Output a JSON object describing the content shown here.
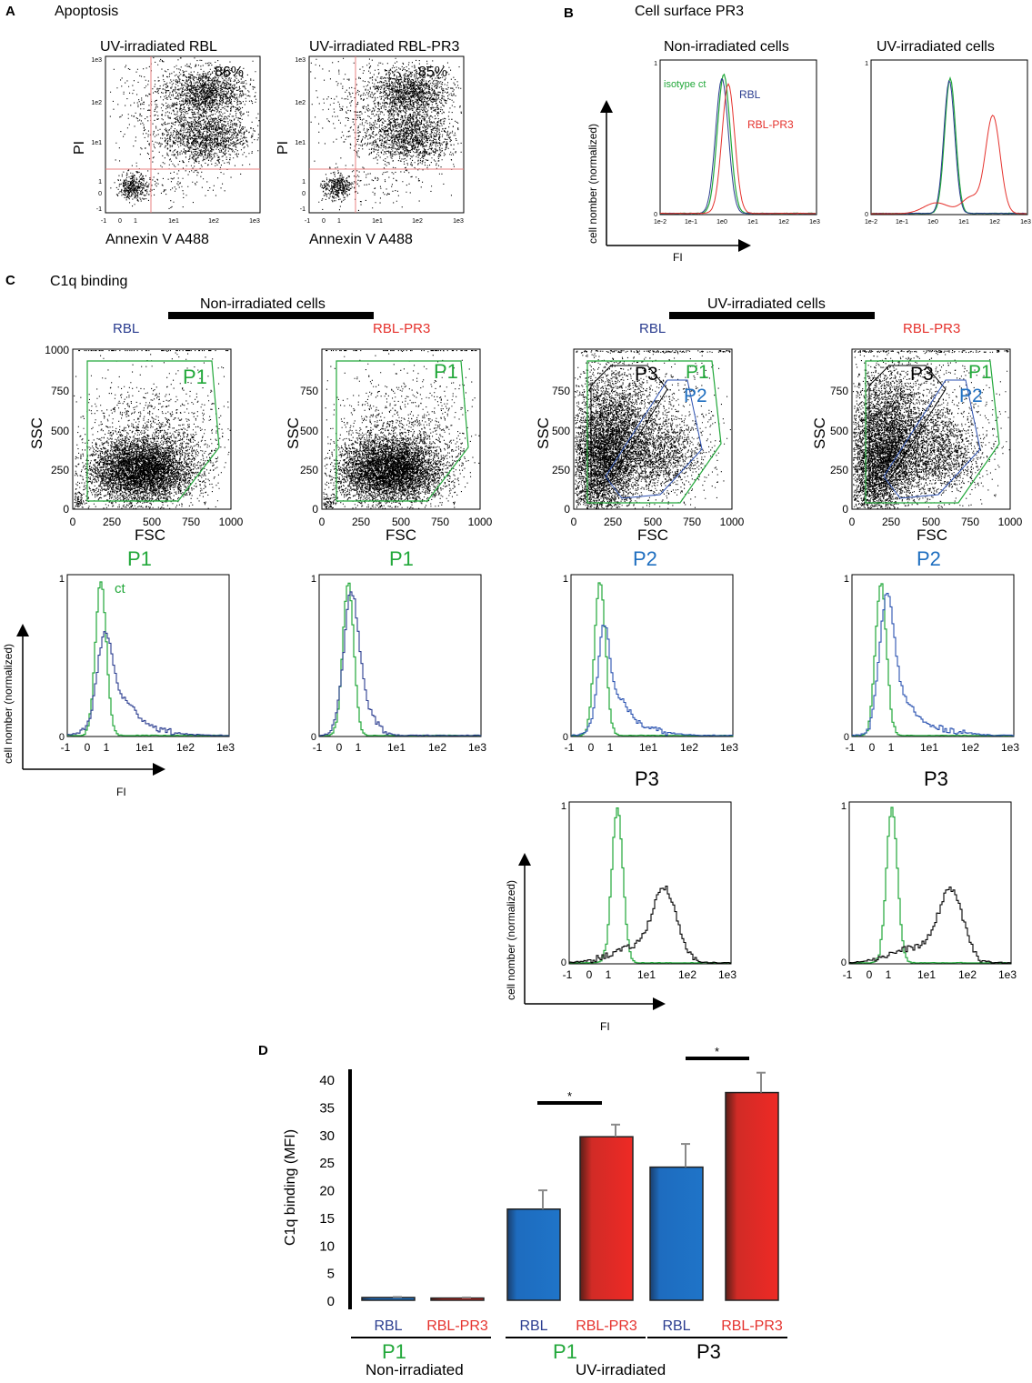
{
  "colors": {
    "green": "#22a83a",
    "red": "#e5322d",
    "navy": "#2a3c8f",
    "blue": "#1f6fc0",
    "black": "#000000",
    "gate_red": "#e88080"
  },
  "panel_a": {
    "letter": "A",
    "title": "Apoptosis",
    "plots": [
      {
        "title": "UV-irradiated  RBL",
        "percent": "86%",
        "ylabel": "PI",
        "xlabel": "Annexin V A488"
      },
      {
        "title": "UV-irradiated RBL-PR3",
        "percent": "85%",
        "ylabel": "PI",
        "xlabel": "Annexin V A488"
      }
    ],
    "x_ticks": [
      "-1",
      "0",
      "1",
      "1e1",
      "1e2",
      "1e3"
    ],
    "y_ticks": [
      "1e3",
      "1e2",
      "1e1",
      "1",
      "0",
      "-1"
    ]
  },
  "panel_b": {
    "letter": "B",
    "title": "Cell surface PR3",
    "plots": [
      {
        "title": "Non-irradiated cells"
      },
      {
        "title": "UV-irradiated cells"
      }
    ],
    "legend": {
      "isotype": "isotype ct",
      "rbl": "RBL",
      "rbl_pr3": "RBL-PR3"
    },
    "ylabel": "cell nomber (normalized)",
    "xlabel": "FI",
    "x_ticks": [
      "1e-2",
      "1e-1",
      "1e0",
      "1e1",
      "1e2",
      "1e3"
    ]
  },
  "panel_c": {
    "letter": "C",
    "title": "C1q binding",
    "group_non": "Non-irradiated cells",
    "group_uv": "UV-irradiated cells",
    "scatter": [
      {
        "name": "RBL",
        "gates": [
          "P1"
        ]
      },
      {
        "name": "RBL-PR3",
        "gates": [
          "P1"
        ]
      },
      {
        "name": "RBL",
        "gates": [
          "P3",
          "P1",
          "P2"
        ]
      },
      {
        "name": "RBL-PR3",
        "gates": [
          "P3",
          "P1",
          "P2"
        ]
      }
    ],
    "scatter_xlabel": "FSC",
    "scatter_ylabel": "SSC",
    "scatter_x_ticks": [
      "0",
      "250",
      "500",
      "750",
      "1000"
    ],
    "scatter_y_ticks": [
      "1000",
      "750",
      "500",
      "250",
      "0"
    ],
    "scatter_y_ticks_short": [
      "750",
      "500",
      "250",
      "0"
    ],
    "hist_row1": [
      "P1",
      "P1",
      "P2",
      "P2"
    ],
    "hist_row2": [
      "P3",
      "P3"
    ],
    "ct_label": "ct",
    "hist_x_ticks": [
      "-1",
      "0",
      "1",
      "1e1",
      "1e2",
      "1e3"
    ],
    "hist_y_ticks": [
      "1",
      "0"
    ],
    "ylabel": "cell nomber (normalized)",
    "xlabel": "FI"
  },
  "chart_data": {
    "type": "bar",
    "letter": "D",
    "ylabel": "C1q binding (MFI)",
    "ylim": [
      0,
      40
    ],
    "yticks": [
      "40",
      "35",
      "30",
      "25",
      "20",
      "15",
      "10",
      "5",
      "0"
    ],
    "categories": [
      "RBL",
      "RBL-PR3",
      "RBL",
      "RBL-PR3",
      "RBL",
      "RBL-PR3"
    ],
    "values": [
      0.5,
      0.4,
      16.5,
      29.6,
      24.1,
      37.6
    ],
    "errors": [
      0.1,
      0.1,
      3.4,
      2.2,
      4.2,
      3.6
    ],
    "groups": [
      {
        "gate": "P1",
        "condition": "Non-irradiated"
      },
      {
        "gate": "P1",
        "condition": "UV-irradiated"
      },
      {
        "gate": "P3",
        "condition": ""
      }
    ],
    "significance": [
      "*",
      "*"
    ]
  }
}
